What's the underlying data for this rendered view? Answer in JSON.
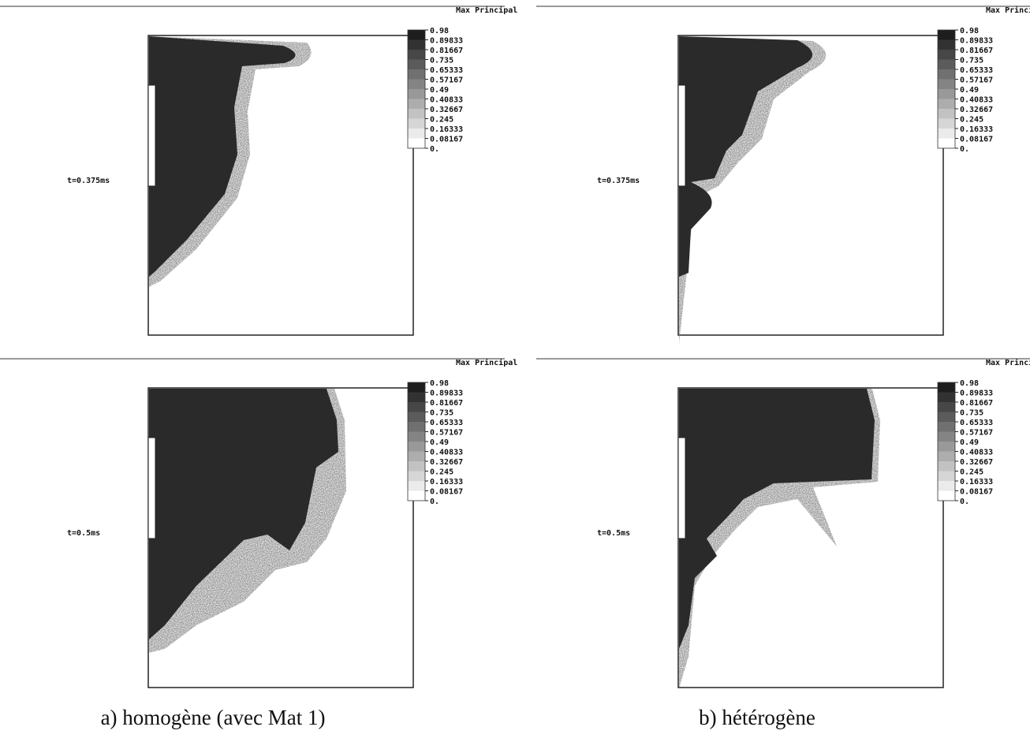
{
  "panels": [
    {
      "legend_title": "Max Principal",
      "legend_levels": [
        "0.98",
        "0.89833",
        "0.81667",
        "0.735",
        "0.65333",
        "0.57167",
        "0.49",
        "0.40833",
        "0.32667",
        "0.245",
        "0.16333",
        "0.08167",
        "0."
      ],
      "time_label": "t=0.375ms"
    },
    {
      "legend_title": "Max Principal",
      "legend_levels": [
        "0.98",
        "0.89833",
        "0.81667",
        "0.735",
        "0.65333",
        "0.57167",
        "0.49",
        "0.40833",
        "0.32667",
        "0.245",
        "0.16333",
        "0.08167",
        "0."
      ],
      "time_label": "t=0.375ms"
    },
    {
      "legend_title": "Max Principal",
      "legend_levels": [
        "0.98",
        "0.89833",
        "0.81667",
        "0.735",
        "0.65333",
        "0.57167",
        "0.49",
        "0.40833",
        "0.32667",
        "0.245",
        "0.16333",
        "0.08167",
        "0."
      ],
      "time_label": "t=0.5ms"
    },
    {
      "legend_title": "Max Principal",
      "legend_levels": [
        "0.98",
        "0.89833",
        "0.81667",
        "0.735",
        "0.65333",
        "0.57167",
        "0.49",
        "0.40833",
        "0.32667",
        "0.245",
        "0.16333",
        "0.08167",
        "0."
      ],
      "time_label": "t=0.5ms"
    }
  ],
  "captions": [
    "a) homogène (avec Mat 1)",
    "b) hétérogène"
  ]
}
